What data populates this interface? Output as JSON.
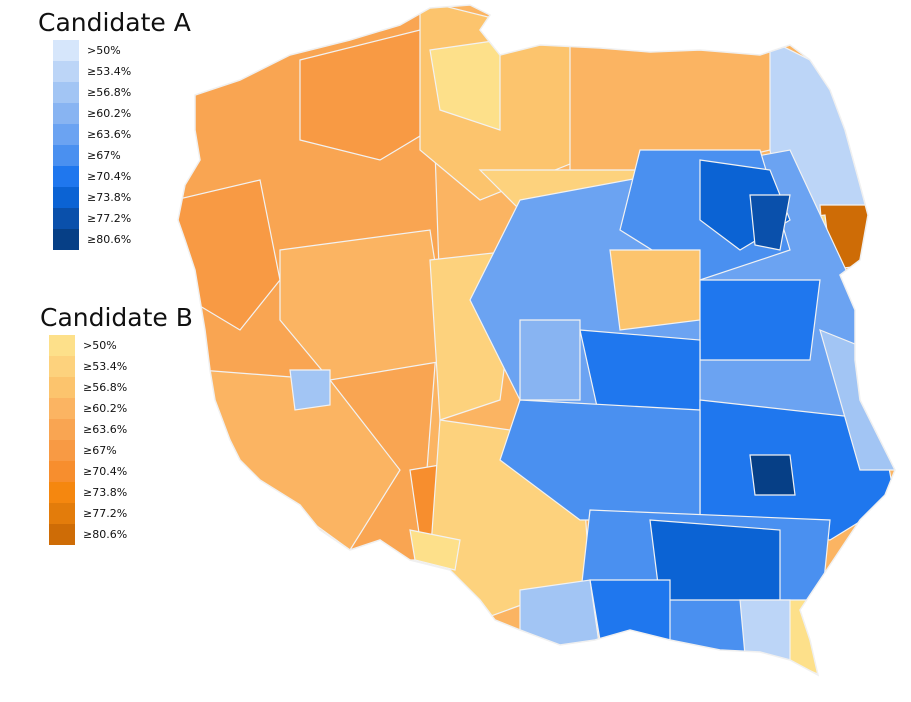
{
  "legend_a": {
    "title": "Candidate A",
    "entries": [
      {
        "label": ">50%",
        "color": "#d6e6fb"
      },
      {
        "label": "≥53.4%",
        "color": "#bcd5f7"
      },
      {
        "label": "≥56.8%",
        "color": "#a2c5f4"
      },
      {
        "label": "≥60.2%",
        "color": "#88b4f2"
      },
      {
        "label": "≥63.6%",
        "color": "#6ba3f2"
      },
      {
        "label": "≥67%",
        "color": "#4a90f0"
      },
      {
        "label": "≥70.4%",
        "color": "#1f77ee"
      },
      {
        "label": "≥73.8%",
        "color": "#0b63d4"
      },
      {
        "label": "≥77.2%",
        "color": "#0a50ab"
      },
      {
        "label": "≥80.6%",
        "color": "#063f86"
      }
    ]
  },
  "legend_b": {
    "title": "Candidate B",
    "entries": [
      {
        "label": ">50%",
        "color": "#fde08a"
      },
      {
        "label": "≥53.4%",
        "color": "#fdd27d"
      },
      {
        "label": "≥56.8%",
        "color": "#fcc46d"
      },
      {
        "label": "≥60.2%",
        "color": "#fbb462"
      },
      {
        "label": "≥63.6%",
        "color": "#f9a552"
      },
      {
        "label": "≥67%",
        "color": "#f89a44"
      },
      {
        "label": "≥70.4%",
        "color": "#f78e2e"
      },
      {
        "label": "≥73.8%",
        "color": "#f5870f"
      },
      {
        "label": "≥77.2%",
        "color": "#e37c0b"
      },
      {
        "label": "≥80.6%",
        "color": "#ce6c06"
      }
    ]
  }
}
